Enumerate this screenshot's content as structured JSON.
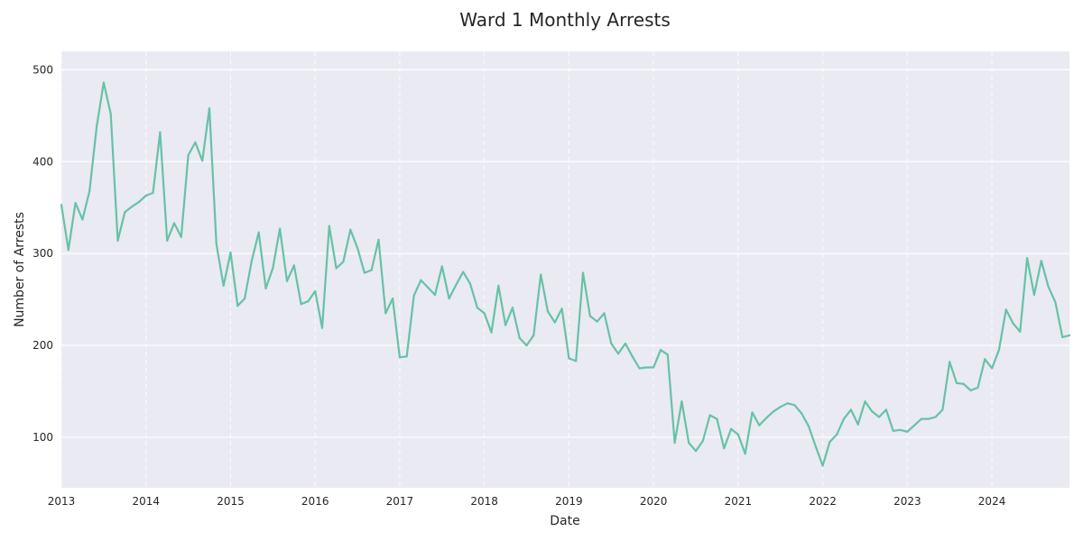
{
  "chart_data": {
    "type": "line",
    "title": "Ward 1 Monthly Arrests",
    "xlabel": "Date",
    "ylabel": "Number of Arrests",
    "x_start": "2013-01",
    "x_end": "2024-12",
    "xlim": [
      "2013-01",
      "2024-12"
    ],
    "ylim": [
      45,
      520
    ],
    "x_ticks": [
      "2013",
      "2014",
      "2015",
      "2016",
      "2017",
      "2018",
      "2019",
      "2020",
      "2021",
      "2022",
      "2023",
      "2024"
    ],
    "y_ticks": [
      100,
      200,
      300,
      400,
      500
    ],
    "grid": true,
    "legend": "none",
    "colors": {
      "line": "#66c2a5",
      "plot_background": "#eaeaf2",
      "grid": "#ffffff"
    },
    "series": [
      {
        "months": [
          "2013-01",
          "2013-02",
          "2013-03",
          "2013-04",
          "2013-05",
          "2013-06",
          "2013-07",
          "2013-08",
          "2013-09",
          "2013-10",
          "2013-11",
          "2013-12",
          "2014-01",
          "2014-02",
          "2014-03",
          "2014-04",
          "2014-05",
          "2014-06",
          "2014-07",
          "2014-08",
          "2014-09",
          "2014-10",
          "2014-11",
          "2014-12",
          "2015-01",
          "2015-02",
          "2015-03",
          "2015-04",
          "2015-05",
          "2015-06",
          "2015-07",
          "2015-08",
          "2015-09",
          "2015-10",
          "2015-11",
          "2015-12",
          "2016-01",
          "2016-02",
          "2016-03",
          "2016-04",
          "2016-05",
          "2016-06",
          "2016-07",
          "2016-08",
          "2016-09",
          "2016-10",
          "2016-11",
          "2016-12",
          "2017-01",
          "2017-02",
          "2017-03",
          "2017-04",
          "2017-05",
          "2017-06",
          "2017-07",
          "2017-08",
          "2017-09",
          "2017-10",
          "2017-11",
          "2017-12",
          "2018-01",
          "2018-02",
          "2018-03",
          "2018-04",
          "2018-05",
          "2018-06",
          "2018-07",
          "2018-08",
          "2018-09",
          "2018-10",
          "2018-11",
          "2018-12",
          "2019-01",
          "2019-02",
          "2019-03",
          "2019-04",
          "2019-05",
          "2019-06",
          "2019-07",
          "2019-08",
          "2019-09",
          "2019-10",
          "2019-11",
          "2019-12",
          "2020-01",
          "2020-02",
          "2020-03",
          "2020-04",
          "2020-05",
          "2020-06",
          "2020-07",
          "2020-08",
          "2020-09",
          "2020-10",
          "2020-11",
          "2020-12",
          "2021-01",
          "2021-02",
          "2021-03",
          "2021-04",
          "2021-05",
          "2021-06",
          "2021-07",
          "2021-08",
          "2021-09",
          "2021-10",
          "2021-11",
          "2021-12",
          "2022-01",
          "2022-02",
          "2022-03",
          "2022-04",
          "2022-05",
          "2022-06",
          "2022-07",
          "2022-08",
          "2022-09",
          "2022-10",
          "2022-11",
          "2022-12",
          "2023-01",
          "2023-02",
          "2023-03",
          "2023-04",
          "2023-05",
          "2023-06",
          "2023-07",
          "2023-08",
          "2023-09",
          "2023-10",
          "2023-11",
          "2023-12",
          "2024-01",
          "2024-02",
          "2024-03",
          "2024-04",
          "2024-05",
          "2024-06",
          "2024-07",
          "2024-08",
          "2024-09",
          "2024-10",
          "2024-11",
          "2024-12"
        ],
        "values": [
          353,
          304,
          355,
          337,
          368,
          438,
          486,
          452,
          314,
          345,
          351,
          356,
          363,
          366,
          432,
          314,
          333,
          318,
          407,
          421,
          401,
          458,
          310,
          265,
          301,
          243,
          251,
          292,
          323,
          262,
          284,
          327,
          270,
          287,
          245,
          248,
          259,
          219,
          330,
          284,
          291,
          326,
          306,
          279,
          282,
          315,
          235,
          251,
          187,
          188,
          254,
          271,
          263,
          255,
          286,
          251,
          266,
          280,
          267,
          241,
          235,
          214,
          265,
          222,
          241,
          208,
          200,
          211,
          277,
          237,
          225,
          240,
          186,
          183,
          279,
          232,
          226,
          235,
          202,
          191,
          202,
          188,
          175,
          176,
          176,
          195,
          190,
          94,
          139,
          94,
          85,
          96,
          124,
          120,
          88,
          109,
          103,
          82,
          127,
          113,
          121,
          128,
          133,
          137,
          135,
          126,
          112,
          90,
          69,
          95,
          103,
          120,
          130,
          114,
          139,
          128,
          122,
          130,
          107,
          108,
          106,
          113,
          120,
          120,
          122,
          130,
          182,
          159,
          158,
          151,
          154,
          185,
          175,
          195,
          239,
          224,
          215,
          295,
          255,
          292,
          264,
          247,
          209,
          211
        ]
      }
    ]
  }
}
